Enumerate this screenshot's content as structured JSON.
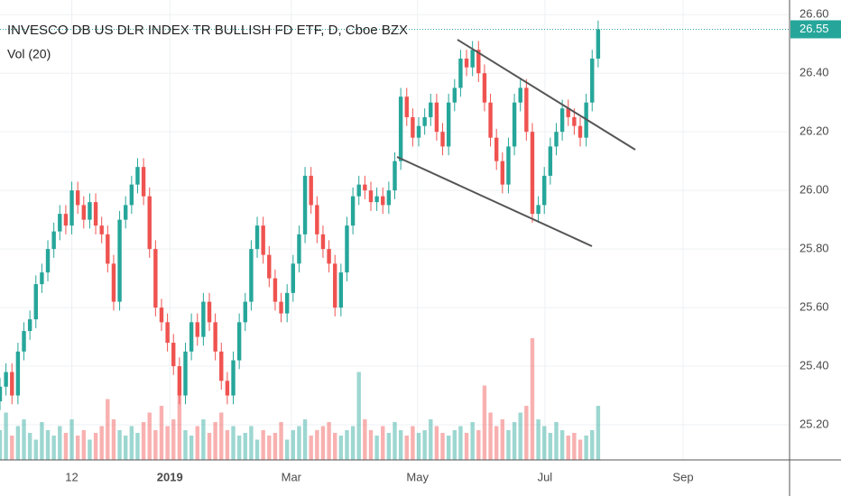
{
  "chart_data": {
    "type": "candlestick",
    "title": "INVESCO DB US DLR INDEX TR BULLISH FD ETF, D, Cboe BZX",
    "subtitle": "Vol (20)",
    "up_color": "#26a69a",
    "down_color": "#ef5350",
    "last_price": {
      "value": 26.55,
      "label": "26.55"
    },
    "xlim": [
      0,
      132
    ],
    "xticks": [
      12,
      {
        "value": 28.4,
        "label": "2019"
      },
      {
        "value": 48.7,
        "label": "Mar"
      },
      {
        "value": 69.8,
        "label": "May"
      },
      {
        "value": 91.1,
        "label": "Jul"
      },
      {
        "value": 114.2,
        "label": "Sep"
      }
    ],
    "ylim": [
      25.08,
      26.65
    ],
    "yticks": [
      {
        "value": 25.2,
        "label": "25.20"
      },
      {
        "value": 25.4,
        "label": "25.40"
      },
      {
        "value": 25.6,
        "label": "25.60"
      },
      {
        "value": 25.8,
        "label": "25.80"
      },
      {
        "value": 26.0,
        "label": "26.00"
      },
      {
        "value": 26.2,
        "label": "26.20"
      },
      {
        "value": 26.4,
        "label": "26.40"
      },
      {
        "value": 26.6,
        "label": "26.60"
      }
    ],
    "y2lim": [
      0,
      340
    ],
    "grid": true,
    "x": [
      0,
      1,
      2,
      3,
      4,
      5,
      6,
      7,
      8,
      9,
      10,
      11,
      12,
      13,
      14,
      15,
      16,
      17,
      18,
      19,
      20,
      21,
      22,
      23,
      24,
      25,
      26,
      27,
      28,
      29,
      30,
      31,
      32,
      33,
      34,
      35,
      36,
      37,
      38,
      39,
      40,
      41,
      42,
      43,
      44,
      45,
      46,
      47,
      48,
      49,
      50,
      51,
      52,
      53,
      54,
      55,
      56,
      57,
      58,
      59,
      60,
      61,
      62,
      63,
      64,
      65,
      66,
      67,
      68,
      69,
      70,
      71,
      72,
      73,
      74,
      75,
      76,
      77,
      78,
      79,
      80,
      81,
      82,
      83,
      84,
      85,
      86,
      87,
      88,
      89,
      90,
      91,
      92,
      93,
      94,
      95,
      96,
      97,
      98,
      99,
      100
    ],
    "open": [
      25.28,
      25.33,
      25.38,
      25.3,
      25.45,
      25.52,
      25.56,
      25.68,
      25.72,
      25.8,
      25.86,
      25.92,
      25.88,
      26.0,
      25.95,
      25.9,
      25.96,
      25.88,
      25.85,
      25.75,
      25.62,
      25.9,
      25.95,
      26.02,
      26.08,
      25.98,
      25.8,
      25.6,
      25.55,
      25.48,
      25.4,
      25.3,
      25.45,
      25.55,
      25.5,
      25.62,
      25.55,
      25.45,
      25.35,
      25.3,
      25.42,
      25.55,
      25.62,
      25.8,
      25.88,
      25.78,
      25.7,
      25.62,
      25.58,
      25.65,
      25.75,
      25.85,
      26.05,
      25.95,
      25.85,
      25.8,
      25.75,
      25.6,
      25.72,
      25.88,
      25.98,
      26.02,
      26.0,
      25.96,
      25.98,
      25.95,
      26.0,
      26.1,
      26.32,
      26.25,
      26.18,
      26.22,
      26.25,
      26.3,
      26.2,
      26.15,
      26.3,
      26.35,
      26.45,
      26.42,
      26.48,
      26.4,
      26.3,
      26.18,
      26.1,
      26.02,
      26.15,
      26.3,
      26.35,
      26.2,
      25.92,
      25.95,
      26.05,
      26.15,
      26.2,
      26.28,
      26.25,
      26.22,
      26.18,
      26.3,
      26.45
    ],
    "high": [
      25.36,
      25.41,
      25.41,
      25.48,
      25.55,
      25.59,
      25.71,
      25.75,
      25.83,
      25.89,
      25.95,
      25.95,
      26.03,
      26.03,
      25.98,
      25.99,
      25.99,
      25.91,
      25.88,
      25.78,
      25.93,
      25.98,
      26.05,
      26.11,
      26.11,
      26.01,
      25.83,
      25.63,
      25.58,
      25.51,
      25.43,
      25.48,
      25.58,
      25.58,
      25.65,
      25.65,
      25.58,
      25.48,
      25.38,
      25.45,
      25.58,
      25.65,
      25.83,
      25.91,
      25.91,
      25.81,
      25.73,
      25.65,
      25.68,
      25.78,
      25.88,
      26.08,
      26.08,
      25.98,
      25.88,
      25.83,
      25.78,
      25.75,
      25.91,
      26.01,
      26.05,
      26.05,
      26.03,
      26.01,
      26.01,
      26.03,
      26.13,
      26.35,
      26.35,
      26.28,
      26.25,
      26.28,
      26.33,
      26.33,
      26.23,
      26.33,
      26.38,
      26.48,
      26.48,
      26.51,
      26.51,
      26.43,
      26.33,
      26.21,
      26.13,
      26.18,
      26.33,
      26.38,
      26.38,
      26.23,
      25.98,
      26.08,
      26.18,
      26.23,
      26.31,
      26.31,
      26.28,
      26.25,
      26.33,
      26.48,
      26.58
    ],
    "low": [
      25.25,
      25.3,
      25.27,
      25.27,
      25.42,
      25.49,
      25.53,
      25.65,
      25.69,
      25.77,
      25.83,
      25.85,
      25.85,
      25.92,
      25.87,
      25.87,
      25.85,
      25.82,
      25.72,
      25.59,
      25.59,
      25.87,
      25.92,
      25.99,
      25.95,
      25.77,
      25.57,
      25.52,
      25.45,
      25.37,
      25.27,
      25.27,
      25.42,
      25.47,
      25.47,
      25.52,
      25.42,
      25.32,
      25.27,
      25.27,
      25.39,
      25.52,
      25.59,
      25.77,
      25.75,
      25.67,
      25.59,
      25.55,
      25.55,
      25.62,
      25.72,
      25.82,
      25.92,
      25.82,
      25.77,
      25.72,
      25.57,
      25.57,
      25.69,
      25.85,
      25.95,
      25.97,
      25.93,
      25.93,
      25.92,
      25.92,
      25.97,
      26.07,
      26.22,
      26.15,
      26.15,
      26.19,
      26.22,
      26.17,
      26.12,
      26.12,
      26.27,
      26.32,
      26.39,
      26.39,
      26.37,
      26.27,
      26.15,
      26.07,
      25.99,
      25.99,
      26.12,
      26.27,
      26.17,
      25.89,
      25.89,
      25.92,
      26.02,
      26.12,
      26.17,
      26.22,
      26.19,
      26.15,
      26.15,
      26.27,
      26.42
    ],
    "close": [
      25.33,
      25.38,
      25.3,
      25.45,
      25.52,
      25.56,
      25.68,
      25.72,
      25.8,
      25.86,
      25.92,
      25.88,
      26.0,
      25.95,
      25.9,
      25.96,
      25.88,
      25.85,
      25.75,
      25.62,
      25.9,
      25.95,
      26.02,
      26.08,
      25.98,
      25.8,
      25.6,
      25.55,
      25.48,
      25.4,
      25.3,
      25.45,
      25.55,
      25.5,
      25.62,
      25.55,
      25.45,
      25.35,
      25.3,
      25.42,
      25.55,
      25.62,
      25.8,
      25.88,
      25.78,
      25.7,
      25.62,
      25.58,
      25.65,
      25.75,
      25.85,
      26.05,
      25.95,
      25.85,
      25.8,
      25.75,
      25.6,
      25.72,
      25.88,
      25.98,
      26.02,
      26.0,
      25.96,
      25.98,
      25.95,
      26.0,
      26.1,
      26.32,
      26.25,
      26.18,
      26.22,
      26.25,
      26.3,
      26.2,
      26.15,
      26.3,
      26.35,
      26.45,
      26.42,
      26.48,
      26.4,
      26.3,
      26.18,
      26.1,
      26.02,
      26.15,
      26.3,
      26.35,
      26.2,
      25.92,
      25.95,
      26.05,
      26.15,
      26.2,
      26.28,
      26.25,
      26.22,
      26.18,
      26.3,
      26.45,
      26.55
    ],
    "volume": [
      22,
      35,
      18,
      25,
      30,
      20,
      15,
      28,
      22,
      18,
      25,
      20,
      30,
      18,
      22,
      15,
      20,
      25,
      45,
      30,
      22,
      18,
      25,
      20,
      28,
      35,
      22,
      40,
      25,
      30,
      55,
      22,
      18,
      25,
      30,
      20,
      28,
      35,
      22,
      25,
      18,
      20,
      25,
      15,
      22,
      18,
      20,
      28,
      15,
      22,
      25,
      30,
      18,
      22,
      25,
      28,
      20,
      18,
      22,
      25,
      65,
      30,
      22,
      18,
      25,
      20,
      28,
      22,
      18,
      25,
      20,
      22,
      30,
      25,
      20,
      18,
      22,
      25,
      20,
      28,
      22,
      55,
      35,
      25,
      30,
      22,
      28,
      35,
      40,
      90,
      30,
      25,
      20,
      28,
      22,
      18,
      20,
      15,
      18,
      22,
      40
    ]
  }
}
